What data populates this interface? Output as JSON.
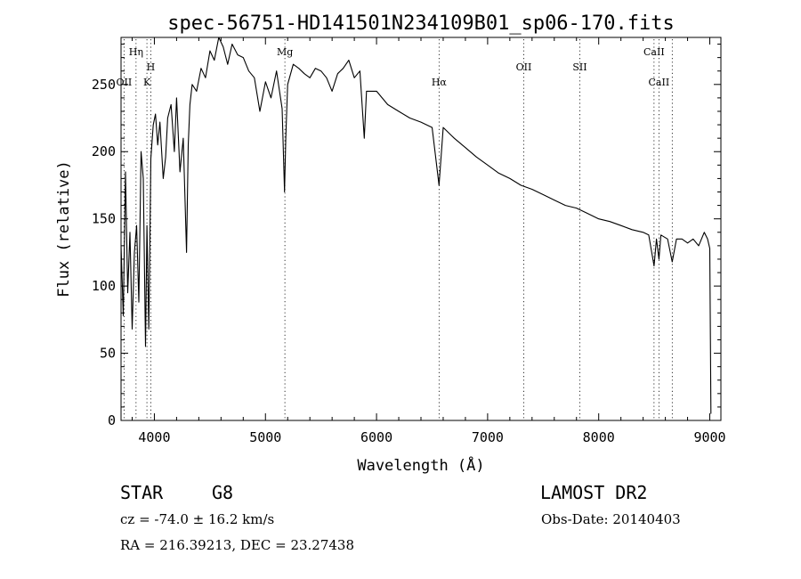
{
  "chart_data": {
    "type": "line",
    "title": "spec-56751-HD141501N234109B01_sp06-170.fits",
    "xlabel": "Wavelength (Å)",
    "ylabel": "Flux (relative)",
    "xlim": [
      3700,
      9100
    ],
    "ylim": [
      0,
      285
    ],
    "xticks": [
      4000,
      5000,
      6000,
      7000,
      8000,
      9000
    ],
    "yticks": [
      0,
      50,
      100,
      150,
      200,
      250
    ],
    "grid": false,
    "series": [
      {
        "x": [
          3700,
          3720,
          3740,
          3760,
          3780,
          3800,
          3820,
          3840,
          3860,
          3880,
          3900,
          3920,
          3933,
          3950,
          3968,
          3990,
          4010,
          4030,
          4050,
          4080,
          4101,
          4120,
          4150,
          4180,
          4200,
          4230,
          4260,
          4290,
          4305,
          4320,
          4340,
          4380,
          4420,
          4460,
          4500,
          4540,
          4580,
          4620,
          4660,
          4700,
          4750,
          4800,
          4850,
          4900,
          4950,
          5000,
          5050,
          5100,
          5150,
          5172,
          5183,
          5200,
          5250,
          5300,
          5350,
          5400,
          5450,
          5500,
          5550,
          5600,
          5650,
          5700,
          5750,
          5800,
          5850,
          5890,
          5910,
          5950,
          6000,
          6100,
          6200,
          6300,
          6400,
          6500,
          6563,
          6600,
          6700,
          6800,
          6900,
          7000,
          7100,
          7200,
          7300,
          7400,
          7500,
          7600,
          7700,
          7800,
          7900,
          8000,
          8100,
          8200,
          8300,
          8400,
          8450,
          8498,
          8520,
          8542,
          8560,
          8620,
          8662,
          8700,
          8750,
          8800,
          8850,
          8900,
          8950,
          8980,
          9000,
          9010
        ],
        "y": [
          130,
          78,
          185,
          95,
          140,
          68,
          125,
          145,
          88,
          200,
          180,
          55,
          145,
          68,
          195,
          220,
          228,
          205,
          222,
          180,
          196,
          225,
          235,
          200,
          240,
          185,
          210,
          125,
          205,
          235,
          250,
          245,
          262,
          255,
          275,
          268,
          285,
          278,
          265,
          280,
          272,
          270,
          260,
          255,
          230,
          252,
          240,
          260,
          232,
          170,
          210,
          250,
          265,
          262,
          258,
          255,
          262,
          260,
          255,
          245,
          258,
          262,
          268,
          255,
          260,
          210,
          245,
          245,
          245,
          235,
          230,
          225,
          222,
          218,
          175,
          218,
          210,
          203,
          196,
          190,
          184,
          180,
          175,
          172,
          168,
          164,
          160,
          158,
          154,
          150,
          148,
          145,
          142,
          140,
          138,
          115,
          135,
          120,
          138,
          135,
          118,
          135,
          135,
          132,
          135,
          130,
          140,
          135,
          128,
          5
        ]
      }
    ],
    "line_marks": [
      {
        "label": "Hη",
        "x": 3835,
        "row": 1
      },
      {
        "label": "OII",
        "x": 3727,
        "row": 3
      },
      {
        "label": "H",
        "x": 3968,
        "row": 2
      },
      {
        "label": "K",
        "x": 3933,
        "row": 3
      },
      {
        "label": "Mg",
        "x": 5175,
        "row": 1
      },
      {
        "label": "Hα",
        "x": 6563,
        "row": 3
      },
      {
        "label": "OII",
        "x": 7325,
        "row": 2
      },
      {
        "label": "SII",
        "x": 7830,
        "row": 2
      },
      {
        "label": "CaII",
        "x": 8498,
        "row": 1
      },
      {
        "label": "CaII",
        "x": 8542,
        "row": 3
      },
      {
        "label": "",
        "x": 8662,
        "row": 0
      }
    ]
  },
  "info": {
    "obj_type": "STAR",
    "subclass": "G8",
    "survey": "LAMOST DR2",
    "cz": "cz = -74.0 ± 16.2 km/s",
    "obs_date": "Obs-Date: 20140403",
    "coords": "RA = 216.39213, DEC =  23.27438"
  }
}
